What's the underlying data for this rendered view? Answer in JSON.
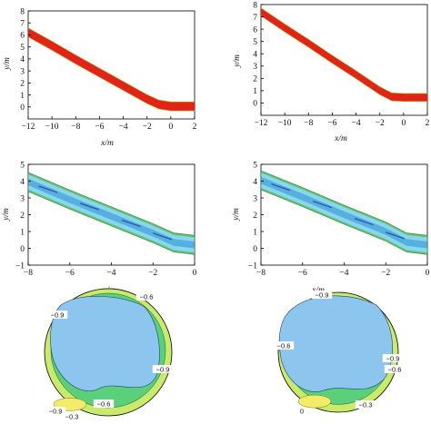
{
  "figure": {
    "panels": [
      {
        "id": "a",
        "xlabel": "x/m",
        "ylabel": "y/m"
      },
      {
        "id": "b",
        "xlabel": "x/m",
        "ylabel": "y/m"
      },
      {
        "id": "c",
        "xlabel": "x/m",
        "ylabel": "y/m"
      },
      {
        "id": "d",
        "xlabel": "x/m",
        "ylabel": "y/m"
      },
      {
        "id": "e"
      },
      {
        "id": "f"
      }
    ]
  },
  "chart_data": [
    {
      "type": "area",
      "description_id": "panel-a",
      "xlabel": "x/m",
      "ylabel": "y/m",
      "xlim": [
        -12,
        2
      ],
      "ylim": [
        -1,
        8
      ],
      "xticks": [
        -12,
        -10,
        -8,
        -6,
        -4,
        -2,
        0,
        2
      ],
      "yticks": [
        0,
        1,
        2,
        3,
        4,
        5,
        6,
        7,
        8
      ],
      "series": [
        {
          "values": [
            [
              -12,
              6.2
            ],
            [
              -10,
              5.1
            ],
            [
              -8,
              3.95
            ],
            [
              -6,
              2.85
            ],
            [
              -4,
              1.75
            ],
            [
              -2,
              0.65
            ],
            [
              -1,
              0.2
            ],
            [
              0,
              0.05
            ],
            [
              2,
              0.05
            ]
          ]
        }
      ],
      "band_halfwidth": 0.35,
      "colors": {
        "band": "#e02418",
        "edge": "#c8b21c"
      }
    },
    {
      "type": "area",
      "description_id": "panel-b",
      "xlabel": "x/m",
      "ylabel": "y/m",
      "xlim": [
        -12,
        2
      ],
      "ylim": [
        -1,
        8
      ],
      "xticks": [
        -12,
        -10,
        -8,
        -6,
        -4,
        -2,
        0,
        2
      ],
      "yticks": [
        0,
        1,
        2,
        3,
        4,
        5,
        6,
        7,
        8
      ],
      "series": [
        {
          "values": [
            [
              -12,
              7.4
            ],
            [
              -10,
              6.1
            ],
            [
              -8,
              4.85
            ],
            [
              -6,
              3.55
            ],
            [
              -4,
              2.3
            ],
            [
              -2,
              1.0
            ],
            [
              -1,
              0.5
            ],
            [
              0,
              0.45
            ],
            [
              2,
              0.45
            ]
          ]
        }
      ],
      "band_halfwidth": 0.3,
      "colors": {
        "band": "#e02418",
        "edge": "#c8b21c"
      }
    },
    {
      "type": "heatmap",
      "description_id": "panel-c",
      "xlabel": "x/m",
      "ylabel": "y/m",
      "xlim": [
        -8,
        0
      ],
      "ylim": [
        -1,
        5
      ],
      "xticks": [
        -8,
        -6,
        -4,
        -2,
        0
      ],
      "yticks": [
        -1,
        0,
        1,
        2,
        3,
        4,
        5
      ],
      "series": [
        {
          "values": [
            [
              -8,
              3.95
            ],
            [
              -6,
              2.9
            ],
            [
              -4,
              1.9
            ],
            [
              -2,
              0.9
            ],
            [
              -1,
              0.35
            ],
            [
              0,
              0.2
            ]
          ]
        }
      ],
      "band_halfwidth": 0.45,
      "colors": {
        "fill": "#89d6ee",
        "edge": "#5cc46a",
        "inner": "#3f9fd8",
        "dark": "#1c3f9a"
      }
    },
    {
      "type": "heatmap",
      "description_id": "panel-d",
      "xlabel": "x/m",
      "ylabel": "y/m",
      "xlim": [
        -8,
        0
      ],
      "ylim": [
        -1,
        5
      ],
      "xticks": [
        -8,
        -6,
        -4,
        -2,
        0
      ],
      "yticks": [
        -1,
        0,
        1,
        2,
        3,
        4,
        5
      ],
      "series": [
        {
          "values": [
            [
              -8,
              4.05
            ],
            [
              -6,
              3.05
            ],
            [
              -4,
              2.0
            ],
            [
              -2,
              1.0
            ],
            [
              -1,
              0.35
            ],
            [
              0,
              0.2
            ]
          ]
        }
      ],
      "band_halfwidth": 0.45,
      "colors": {
        "fill": "#89d6ee",
        "edge": "#5cc46a",
        "inner": "#3f9fd8",
        "dark": "#1c3f9a"
      }
    },
    {
      "type": "heatmap",
      "description_id": "panel-e",
      "contour_labels": [
        "-0.6",
        "-0.9",
        "-0.9",
        "-0.9",
        "-0.3",
        "-0.6"
      ],
      "colors": {
        "outer": "#c9ea6a",
        "ring": "#5bd07a",
        "core": "#8cc6ee",
        "hot": "#f2ec6a"
      }
    },
    {
      "type": "heatmap",
      "description_id": "panel-f",
      "contour_labels": [
        "-0.9",
        "-0.6",
        "-0.9",
        "-0.6",
        "-0.3",
        "0"
      ],
      "colors": {
        "outer": "#c9ea6a",
        "ring": "#5bd07a",
        "core": "#8cc6ee",
        "hot": "#f2ec6a"
      }
    }
  ]
}
